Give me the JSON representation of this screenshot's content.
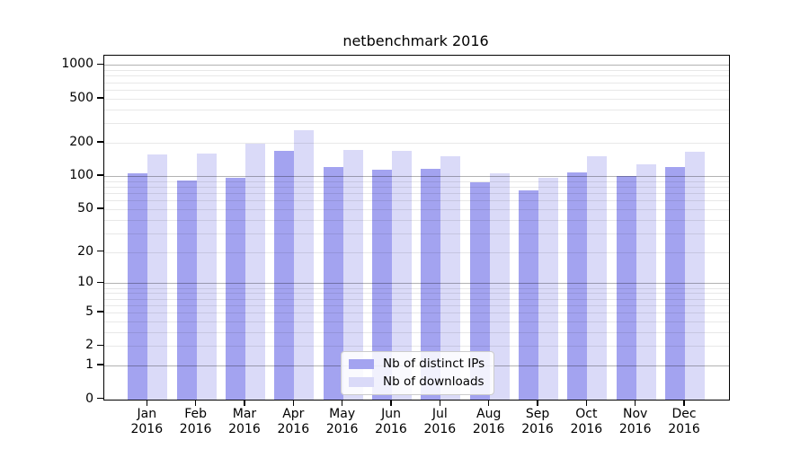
{
  "title": "netbenchmark 2016",
  "chart_data": {
    "type": "bar",
    "title": "netbenchmark 2016",
    "categories": [
      "Jan 2016",
      "Feb 2016",
      "Mar 2016",
      "Apr 2016",
      "May 2016",
      "Jun 2016",
      "Jul 2016",
      "Aug 2016",
      "Sep 2016",
      "Oct 2016",
      "Nov 2016",
      "Dec 2016"
    ],
    "x_tick_months": [
      "Jan",
      "Feb",
      "Mar",
      "Apr",
      "May",
      "Jun",
      "Jul",
      "Aug",
      "Sep",
      "Oct",
      "Nov",
      "Dec"
    ],
    "x_tick_year": "2016",
    "series": [
      {
        "name": "Nb of distinct IPs",
        "color": "#a3a3f0",
        "values": [
          107,
          92,
          98,
          170,
          122,
          114,
          118,
          88,
          75,
          108,
          100,
          122
        ]
      },
      {
        "name": "Nb of downloads",
        "color": "#dadaf8",
        "values": [
          158,
          162,
          199,
          263,
          173,
          170,
          152,
          106,
          98,
          152,
          128,
          166
        ]
      }
    ],
    "yscale": "log(1+x)",
    "ytick_values": [
      0,
      1,
      2,
      5,
      10,
      20,
      50,
      100,
      200,
      500,
      1000
    ],
    "ylim": [
      0,
      1215
    ],
    "grid": "major+minor horizontal",
    "legend_position": "inside lower-center",
    "grid_major_color": "#adadad",
    "grid_minor_color": "#e9e9e9",
    "axis_color": "#000000"
  }
}
